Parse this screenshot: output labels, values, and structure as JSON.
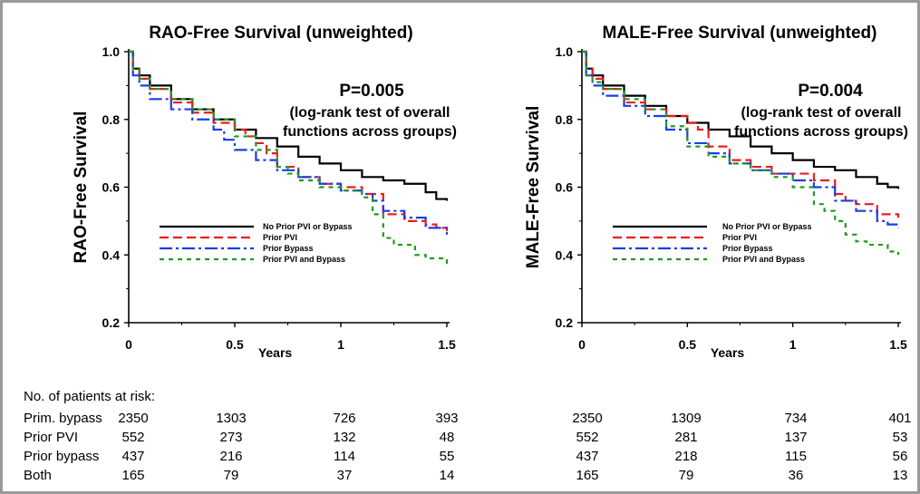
{
  "chart_data": [
    {
      "type": "line",
      "title": "RAO-Free Survival (unweighted)",
      "xlabel": "Years",
      "ylabel": "RAO-Free Survival",
      "xlim": [
        0,
        1.5
      ],
      "ylim": [
        0.2,
        1.0
      ],
      "xticks": [
        "0",
        "0.5",
        "1",
        "1.5"
      ],
      "yticks": [
        "0.2",
        "0.4",
        "0.6",
        "0.8",
        "1.0"
      ],
      "grid": false,
      "legend_position": "center",
      "annotation": {
        "p_value": "P=0.005",
        "line1": "(log-rank test of overall",
        "line2": "functions across groups)"
      },
      "series": [
        {
          "name": "No Prior PVI or Bypass",
          "color": "#000000",
          "dash": "solid",
          "x": [
            0,
            0.02,
            0.05,
            0.1,
            0.2,
            0.3,
            0.4,
            0.5,
            0.6,
            0.7,
            0.8,
            0.9,
            1.0,
            1.1,
            1.2,
            1.3,
            1.4,
            1.45,
            1.5
          ],
          "y": [
            1.0,
            0.95,
            0.93,
            0.9,
            0.86,
            0.83,
            0.8,
            0.77,
            0.745,
            0.72,
            0.69,
            0.67,
            0.65,
            0.63,
            0.62,
            0.61,
            0.585,
            0.565,
            0.56
          ]
        },
        {
          "name": "Prior PVI",
          "color": "#ee1c1c",
          "dash": "dashed",
          "x": [
            0,
            0.02,
            0.05,
            0.1,
            0.2,
            0.3,
            0.4,
            0.5,
            0.55,
            0.6,
            0.65,
            0.7,
            0.8,
            0.9,
            1.0,
            1.1,
            1.2,
            1.3,
            1.4,
            1.45,
            1.5
          ],
          "y": [
            1.0,
            0.95,
            0.92,
            0.89,
            0.85,
            0.82,
            0.79,
            0.77,
            0.75,
            0.73,
            0.7,
            0.66,
            0.63,
            0.61,
            0.6,
            0.58,
            0.52,
            0.5,
            0.49,
            0.48,
            0.47
          ]
        },
        {
          "name": "Prior Bypass",
          "color": "#1a3ee6",
          "dash": "dashdot",
          "x": [
            0,
            0.02,
            0.05,
            0.1,
            0.2,
            0.3,
            0.4,
            0.45,
            0.5,
            0.6,
            0.7,
            0.8,
            0.9,
            1.0,
            1.1,
            1.15,
            1.2,
            1.3,
            1.4,
            1.5
          ],
          "y": [
            1.0,
            0.93,
            0.9,
            0.86,
            0.83,
            0.8,
            0.77,
            0.74,
            0.71,
            0.68,
            0.65,
            0.63,
            0.61,
            0.59,
            0.58,
            0.56,
            0.53,
            0.51,
            0.48,
            0.46
          ]
        },
        {
          "name": "Prior PVI and Bypass",
          "color": "#1e9b1e",
          "dash": "dotted",
          "x": [
            0,
            0.02,
            0.05,
            0.1,
            0.2,
            0.3,
            0.4,
            0.5,
            0.6,
            0.7,
            0.75,
            0.8,
            0.9,
            1.0,
            1.1,
            1.15,
            1.2,
            1.25,
            1.3,
            1.35,
            1.4,
            1.45,
            1.5
          ],
          "y": [
            1.0,
            0.95,
            0.92,
            0.89,
            0.86,
            0.83,
            0.8,
            0.75,
            0.71,
            0.66,
            0.64,
            0.62,
            0.6,
            0.59,
            0.57,
            0.52,
            0.45,
            0.43,
            0.43,
            0.4,
            0.39,
            0.39,
            0.37
          ]
        }
      ]
    },
    {
      "type": "line",
      "title": "MALE-Free Survival (unweighted)",
      "xlabel": "Years",
      "ylabel": "MALE-Free Survival",
      "xlim": [
        0,
        1.5
      ],
      "ylim": [
        0.2,
        1.0
      ],
      "xticks": [
        "0",
        "0.5",
        "1",
        "1.5"
      ],
      "yticks": [
        "0.2",
        "0.4",
        "0.6",
        "0.8",
        "1.0"
      ],
      "grid": false,
      "legend_position": "center",
      "annotation": {
        "p_value": "P=0.004",
        "line1": "(log-rank test of overall",
        "line2": "functions across groups)"
      },
      "series": [
        {
          "name": "No Prior PVI or Bypass",
          "color": "#000000",
          "dash": "solid",
          "x": [
            0,
            0.02,
            0.05,
            0.1,
            0.2,
            0.3,
            0.4,
            0.5,
            0.6,
            0.7,
            0.8,
            0.9,
            1.0,
            1.1,
            1.2,
            1.3,
            1.4,
            1.45,
            1.5
          ],
          "y": [
            1.0,
            0.95,
            0.93,
            0.9,
            0.87,
            0.84,
            0.81,
            0.79,
            0.77,
            0.75,
            0.72,
            0.7,
            0.68,
            0.66,
            0.65,
            0.63,
            0.61,
            0.6,
            0.595
          ]
        },
        {
          "name": "Prior PVI",
          "color": "#ee1c1c",
          "dash": "dashed",
          "x": [
            0,
            0.02,
            0.05,
            0.1,
            0.2,
            0.3,
            0.4,
            0.5,
            0.55,
            0.6,
            0.7,
            0.8,
            0.9,
            1.0,
            1.1,
            1.2,
            1.25,
            1.3,
            1.4,
            1.5
          ],
          "y": [
            1.0,
            0.95,
            0.92,
            0.89,
            0.85,
            0.83,
            0.81,
            0.79,
            0.77,
            0.72,
            0.68,
            0.66,
            0.64,
            0.64,
            0.62,
            0.58,
            0.56,
            0.55,
            0.52,
            0.51
          ]
        },
        {
          "name": "Prior Bypass",
          "color": "#1a3ee6",
          "dash": "dashdot",
          "x": [
            0,
            0.02,
            0.05,
            0.1,
            0.2,
            0.3,
            0.4,
            0.5,
            0.6,
            0.7,
            0.8,
            0.9,
            1.0,
            1.1,
            1.2,
            1.3,
            1.4,
            1.45,
            1.5
          ],
          "y": [
            1.0,
            0.93,
            0.9,
            0.87,
            0.84,
            0.81,
            0.77,
            0.73,
            0.7,
            0.67,
            0.65,
            0.64,
            0.62,
            0.6,
            0.56,
            0.53,
            0.5,
            0.49,
            0.48
          ]
        },
        {
          "name": "Prior PVI and Bypass",
          "color": "#1e9b1e",
          "dash": "dotted",
          "x": [
            0,
            0.02,
            0.05,
            0.1,
            0.2,
            0.3,
            0.4,
            0.5,
            0.6,
            0.7,
            0.8,
            0.9,
            1.0,
            1.1,
            1.15,
            1.2,
            1.25,
            1.3,
            1.35,
            1.4,
            1.45,
            1.5
          ],
          "y": [
            1.0,
            0.93,
            0.91,
            0.89,
            0.86,
            0.83,
            0.78,
            0.72,
            0.69,
            0.67,
            0.65,
            0.63,
            0.6,
            0.55,
            0.53,
            0.5,
            0.46,
            0.44,
            0.43,
            0.43,
            0.41,
            0.4
          ]
        }
      ]
    }
  ],
  "risk_table": {
    "heading": "No. of patients at risk:",
    "rows": [
      {
        "label": "Prim. bypass",
        "rao": [
          "2350",
          "1303",
          "726",
          "393"
        ],
        "male": [
          "2350",
          "1309",
          "734",
          "401"
        ]
      },
      {
        "label": "Prior PVI",
        "rao": [
          "552",
          "273",
          "132",
          "48"
        ],
        "male": [
          "552",
          "281",
          "137",
          "53"
        ]
      },
      {
        "label": "Prior bypass",
        "rao": [
          "437",
          "216",
          "114",
          "55"
        ],
        "male": [
          "437",
          "218",
          "115",
          "56"
        ]
      },
      {
        "label": "Both",
        "rao": [
          "165",
          "79",
          "37",
          "14"
        ],
        "male": [
          "165",
          "79",
          "36",
          "13"
        ]
      }
    ]
  }
}
